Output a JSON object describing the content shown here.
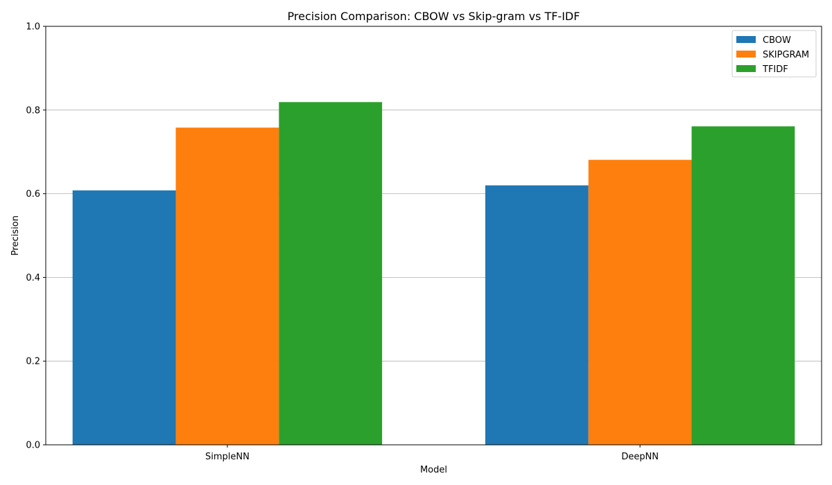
{
  "chart_data": {
    "type": "bar",
    "title": "Precision Comparison: CBOW vs Skip-gram vs TF-IDF",
    "xlabel": "Model",
    "ylabel": "Precision",
    "categories": [
      "SimpleNN",
      "DeepNN"
    ],
    "series": [
      {
        "name": "CBOW",
        "values": [
          0.608,
          0.62
        ],
        "color": "#1f77b4"
      },
      {
        "name": "SKIPGRAM",
        "values": [
          0.758,
          0.681
        ],
        "color": "#ff7f0e"
      },
      {
        "name": "TFIDF",
        "values": [
          0.819,
          0.761
        ],
        "color": "#2ca02c"
      }
    ],
    "ylim": [
      0,
      1.0
    ],
    "yticks": [
      "0.0",
      "0.2",
      "0.4",
      "0.6",
      "0.8",
      "1.0"
    ],
    "grid": "horizontal",
    "legend_position": "top-right"
  }
}
